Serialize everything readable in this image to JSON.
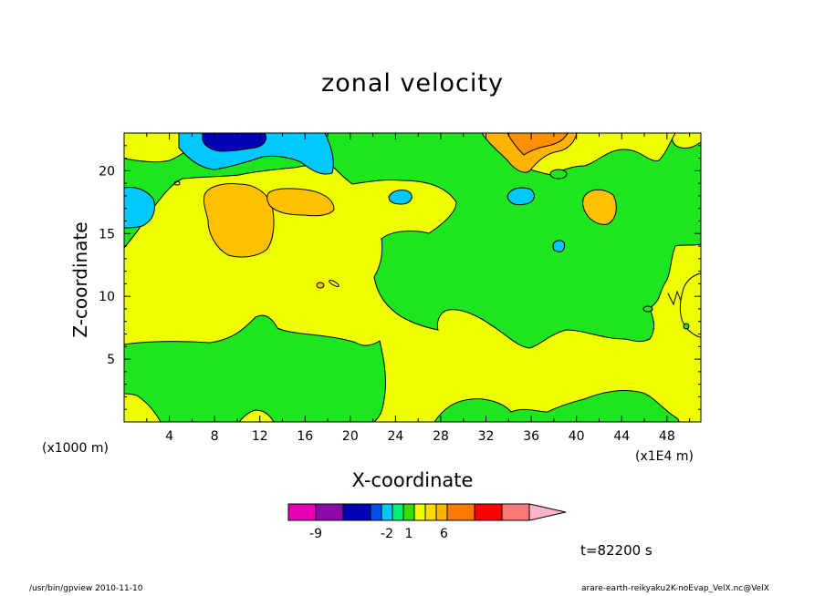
{
  "chart_data": {
    "type": "heatmap",
    "title": "zonal velocity",
    "xlabel": "X-coordinate",
    "ylabel": "Z-coordinate",
    "x_unit_label": "(x1000 m)",
    "x_scale_label": "(x1E4 m)",
    "xlim": [
      0,
      51
    ],
    "ylim": [
      0,
      23
    ],
    "x_ticks": [
      "4",
      "8",
      "12",
      "16",
      "20",
      "24",
      "28",
      "32",
      "36",
      "40",
      "44",
      "48"
    ],
    "y_ticks": [
      "5",
      "10",
      "15",
      "20"
    ],
    "colorbar": {
      "colors": [
        "#e600b4",
        "#8c0aaa",
        "#0000b4",
        "#0050f0",
        "#00c8ff",
        "#00f078",
        "#30e000",
        "#eeff00",
        "#ffdc00",
        "#ffb400",
        "#ff7800",
        "#ff0000",
        "#ff7878",
        "#ffb4c8"
      ],
      "labels": [
        {
          "text": "-9",
          "index": 1
        },
        {
          "text": "-2",
          "index": 4.5
        },
        {
          "text": "1",
          "index": 6.5
        },
        {
          "text": "6",
          "index": 9.7
        }
      ]
    },
    "regions": [
      {
        "level": "light green",
        "color": "#1ee61e"
      },
      {
        "level": "yellow",
        "color": "#eeff00"
      },
      {
        "level": "orange",
        "color": "#ffc000"
      },
      {
        "level": "cyan",
        "color": "#00c8ff"
      },
      {
        "level": "blue",
        "color": "#0000b4"
      }
    ]
  },
  "time_label": "t=82200 s",
  "footer": {
    "left": "/usr/bin/gpview   2010-11-10",
    "right": "arare-earth-reikyaku2K-noEvap_VelX.nc@VelX"
  }
}
